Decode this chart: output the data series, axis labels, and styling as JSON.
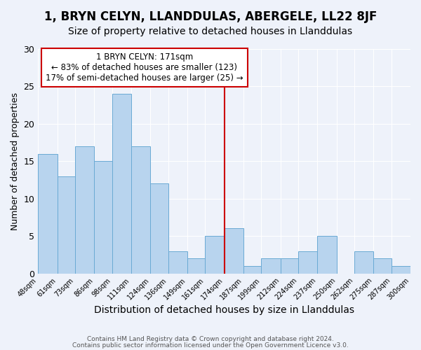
{
  "title": "1, BRYN CELYN, LLANDDULAS, ABERGELE, LL22 8JF",
  "subtitle": "Size of property relative to detached houses in Llanddulas",
  "xlabel": "Distribution of detached houses by size in Llanddulas",
  "ylabel": "Number of detached properties",
  "bar_labels": [
    "48sqm",
    "61sqm",
    "73sqm",
    "86sqm",
    "98sqm",
    "111sqm",
    "124sqm",
    "136sqm",
    "149sqm",
    "161sqm",
    "174sqm",
    "187sqm",
    "199sqm",
    "212sqm",
    "224sqm",
    "237sqm",
    "250sqm",
    "262sqm",
    "275sqm",
    "287sqm",
    "300sqm"
  ],
  "bar_values": [
    16,
    13,
    17,
    15,
    24,
    17,
    12,
    3,
    2,
    5,
    6,
    1,
    2,
    2,
    3,
    5,
    0,
    3,
    2,
    1,
    0
  ],
  "bin_edges": [
    48,
    61,
    73,
    86,
    98,
    111,
    124,
    136,
    149,
    161,
    174,
    187,
    199,
    212,
    224,
    237,
    250,
    262,
    275,
    287,
    300
  ],
  "bar_color": "#b8d4ee",
  "bar_edge_color": "#6aaad4",
  "bg_color": "#eef2fa",
  "vline_x": 174,
  "vline_color": "#cc0000",
  "annotation_title": "1 BRYN CELYN: 171sqm",
  "annotation_line1": "← 83% of detached houses are smaller (123)",
  "annotation_line2": "17% of semi-detached houses are larger (25) →",
  "annotation_box_color": "#cc0000",
  "ylim": [
    0,
    30
  ],
  "yticks": [
    0,
    5,
    10,
    15,
    20,
    25,
    30
  ],
  "footer1": "Contains HM Land Registry data © Crown copyright and database right 2024.",
  "footer2": "Contains public sector information licensed under the Open Government Licence v3.0.",
  "title_fontsize": 12,
  "subtitle_fontsize": 10,
  "xlabel_fontsize": 10,
  "ylabel_fontsize": 9,
  "annotation_fontsize": 8.5
}
